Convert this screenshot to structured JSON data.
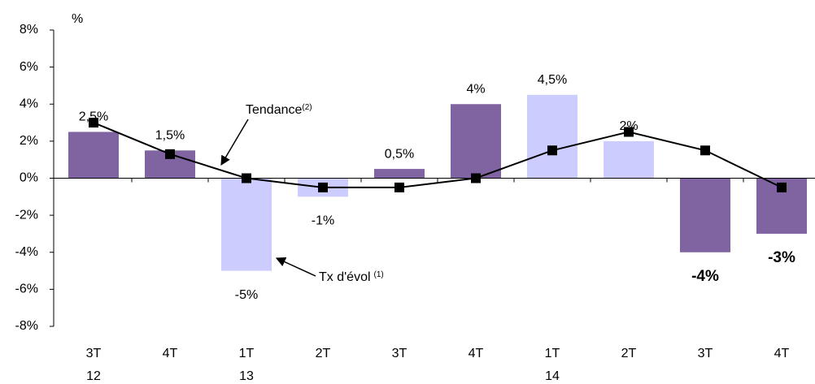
{
  "chart_data": {
    "type": "bar",
    "y_axis_label": "%",
    "categories": [
      "3T",
      "4T",
      "1T",
      "2T",
      "3T",
      "4T",
      "1T",
      "2T",
      "3T",
      "4T"
    ],
    "x_sublabels": [
      "12",
      null,
      "13",
      null,
      null,
      null,
      "14",
      null,
      null,
      null
    ],
    "values": [
      2.5,
      1.5,
      -5,
      -1,
      0.5,
      4,
      4.5,
      2,
      -4,
      -3
    ],
    "value_labels": [
      "2,5%",
      "1,5%",
      "-5%",
      "-1%",
      "0,5%",
      "4%",
      "4,5%",
      "2%",
      "-4%",
      "-3%"
    ],
    "value_label_bold": [
      false,
      false,
      false,
      false,
      false,
      false,
      false,
      false,
      true,
      true
    ],
    "colors": [
      "#8064a2",
      "#8064a2",
      "#ccccff",
      "#ccccff",
      "#8064a2",
      "#8064a2",
      "#ccccff",
      "#ccccff",
      "#8064a2",
      "#8064a2"
    ],
    "line": {
      "values": [
        3,
        1.3,
        0,
        -0.5,
        -0.5,
        0,
        1.5,
        2.5,
        1.5,
        -0.5
      ],
      "color": "#000000"
    },
    "annotations": [
      {
        "text": "Tendance",
        "sup": "(2)"
      },
      {
        "text": "Tx d'évol",
        "sup": "(1)"
      }
    ],
    "ylim": [
      -8,
      8
    ],
    "yticks": [
      {
        "value": -8,
        "label": "-8%"
      },
      {
        "value": -6,
        "label": "-6%"
      },
      {
        "value": -4,
        "label": "-4%"
      },
      {
        "value": -2,
        "label": "-2%"
      },
      {
        "value": 0,
        "label": "0%"
      },
      {
        "value": 2,
        "label": "2%"
      },
      {
        "value": 4,
        "label": "4%"
      },
      {
        "value": 6,
        "label": "6%"
      },
      {
        "value": 8,
        "label": "8%"
      }
    ],
    "grid": false
  }
}
